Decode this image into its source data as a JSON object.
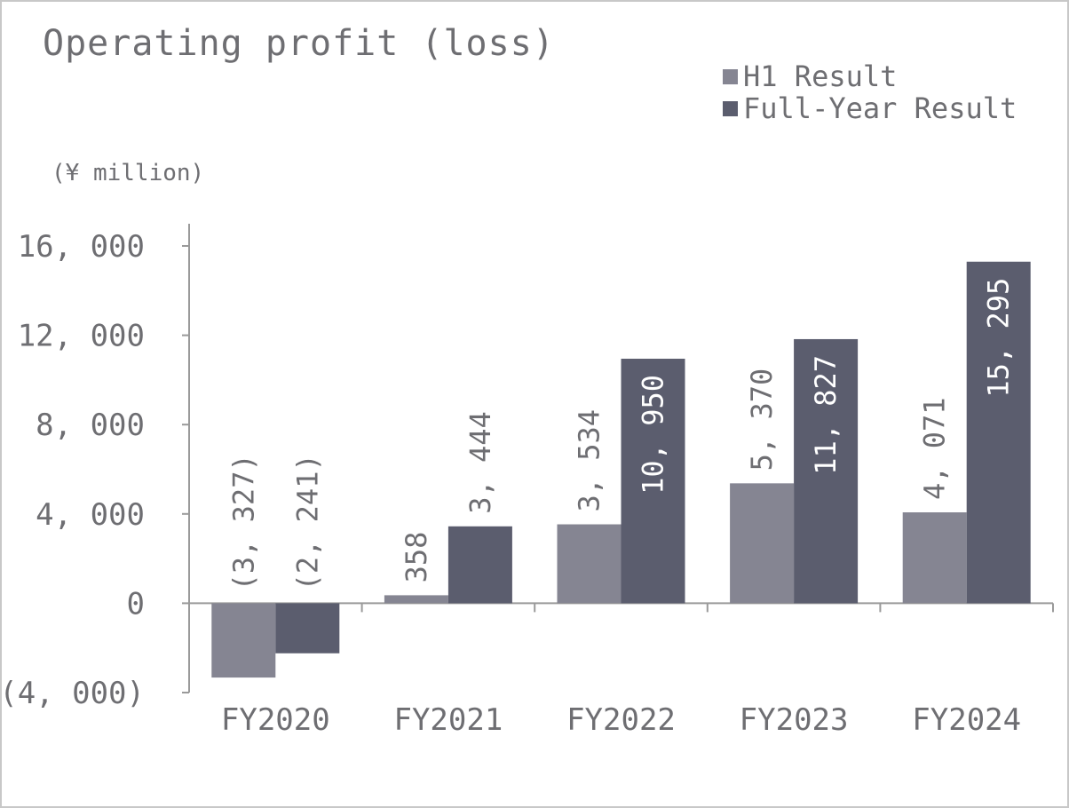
{
  "chart_data": {
    "type": "bar",
    "title": "Operating profit (loss)",
    "ylabel": "(¥ million)",
    "xlabel": "",
    "categories": [
      "FY2020",
      "FY2021",
      "FY2022",
      "FY2023",
      "FY2024"
    ],
    "series": [
      {
        "name": "H1 Result",
        "color": "#858592",
        "values": [
          -3327,
          358,
          3534,
          5370,
          4071
        ],
        "labels": [
          "(3, 327)",
          "358",
          "3, 534",
          "5, 370",
          "4, 071"
        ]
      },
      {
        "name": "Full-Year Result",
        "color": "#5b5d6e",
        "values": [
          -2241,
          3444,
          10950,
          11827,
          15295
        ],
        "labels": [
          "(2, 241)",
          "3, 444",
          "10, 950",
          "11, 827",
          "15, 295"
        ]
      }
    ],
    "ylim": [
      -4000,
      16000
    ],
    "yticks": [
      -4000,
      0,
      4000,
      8000,
      12000,
      16000
    ],
    "ytick_labels": [
      "(4, 000)",
      "0",
      "4, 000",
      "8, 000",
      "12, 000",
      "16, 000"
    ],
    "legend_position": "top-right",
    "grid": false
  }
}
